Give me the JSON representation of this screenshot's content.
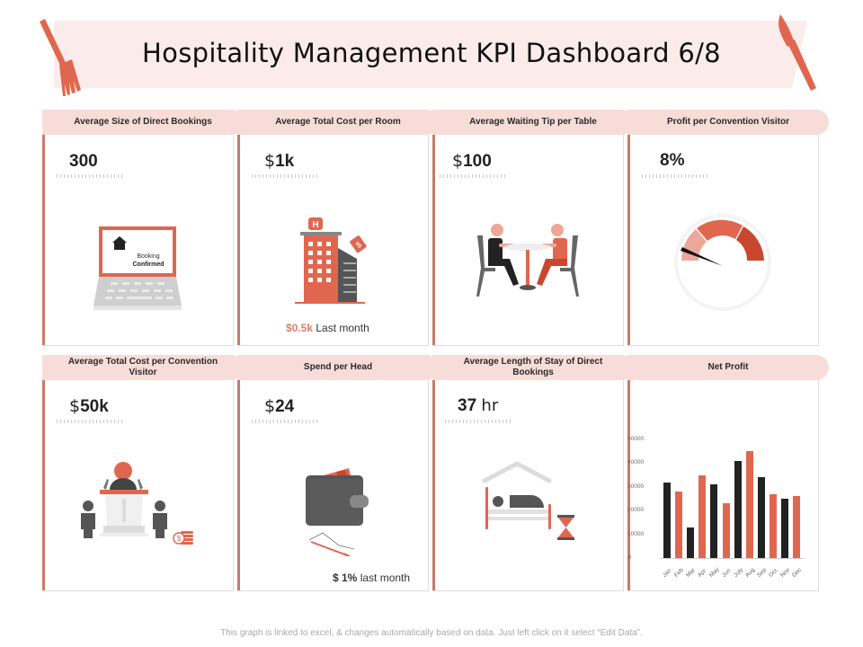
{
  "header": {
    "title": "Hospitality Management KPI Dashboard 6/8"
  },
  "colors": {
    "accent": "#e0674f",
    "accent_dark": "#c9472e",
    "header_bg": "#f7dcd8",
    "band_bg": "#fbeceb",
    "dark": "#222222",
    "grey": "#5b5b5b"
  },
  "cards": [
    {
      "title": "Average Size of Direct Bookings",
      "prefix": "",
      "value": "300",
      "unit": "",
      "illustration": "laptop-booking-icon",
      "illu_text_1": "Booking",
      "illu_text_2": "Confirmed"
    },
    {
      "title": "Average Total Cost per Room",
      "prefix": "$",
      "value": "1k",
      "unit": "",
      "illustration": "hotel-building-icon",
      "note_value": "$0.5k",
      "note_text": "Last month"
    },
    {
      "title": "Average Waiting Tip per Table",
      "prefix": "$",
      "value": "100",
      "unit": "",
      "illustration": "dining-table-icon"
    },
    {
      "title": "Profit per Convention Visitor",
      "prefix": "",
      "value": "8%",
      "unit": "",
      "illustration": "gauge-icon"
    },
    {
      "title": "Average Total Cost per Convention Visitor",
      "prefix": "$",
      "value": "50k",
      "unit": "",
      "illustration": "podium-speaker-icon"
    },
    {
      "title": "Spend per Head",
      "prefix": "$",
      "value": "24",
      "unit": "",
      "illustration": "wallet-icon",
      "note_value": "$ 1%",
      "note_text": "last month"
    },
    {
      "title": "Average Length of Stay of Direct Bookings",
      "prefix": "",
      "value": "37",
      "unit": "hr",
      "illustration": "bed-hourglass-icon"
    },
    {
      "title": "Net Profit",
      "prefix": "",
      "value": "",
      "unit": "",
      "illustration": "bar-chart"
    }
  ],
  "chart_data": {
    "type": "bar",
    "title": "Net Profit",
    "categories": [
      "Jan",
      "Feb",
      "Mar",
      "Apr",
      "May",
      "Jun",
      "July",
      "Aug",
      "Sep",
      "Oct",
      "Nov",
      "Dec"
    ],
    "values": [
      32000,
      28000,
      13000,
      35000,
      31000,
      23000,
      41000,
      45000,
      34000,
      27000,
      25000,
      26000
    ],
    "bar_colors": [
      "#222222",
      "#e0674f",
      "#222222",
      "#e0674f",
      "#222222",
      "#e0674f",
      "#222222",
      "#e0674f",
      "#222222",
      "#e0674f",
      "#222222",
      "#e0674f"
    ],
    "yticks": [
      0,
      10000,
      20000,
      30000,
      40000,
      50000
    ],
    "ylim": [
      0,
      50000
    ],
    "xlabel": "",
    "ylabel": "",
    "grid": false,
    "legend": "none"
  },
  "footer": {
    "text": "This graph is linked to excel, & changes automatically based on data. Just left click on it select “Edit Data”."
  }
}
